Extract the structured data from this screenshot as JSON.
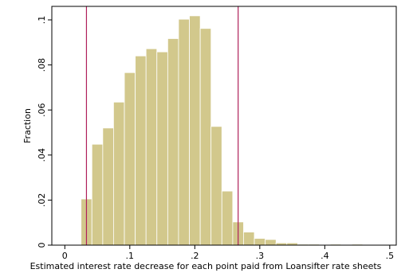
{
  "chart_data": {
    "type": "bar",
    "subtype": "histogram",
    "xlabel": "Estimated interest rate decrease for each point paid from Loansifter rate sheets",
    "ylabel": "Fraction",
    "xlim": [
      -0.02,
      0.51
    ],
    "ylim": [
      0,
      0.106
    ],
    "x_ticks": [
      0,
      0.1,
      0.2,
      0.3,
      0.4,
      0.5
    ],
    "x_tick_labels": [
      "0",
      ".1",
      ".2",
      ".3",
      ".4",
      ".5"
    ],
    "y_ticks": [
      0,
      0.02,
      0.04,
      0.06,
      0.08,
      0.1
    ],
    "y_tick_labels": [
      "0",
      ".02",
      ".04",
      ".06",
      ".08",
      ".1"
    ],
    "bin_width": 0.01667,
    "bins": [
      {
        "x": 0.0333,
        "value": 0.0205
      },
      {
        "x": 0.05,
        "value": 0.0448
      },
      {
        "x": 0.0667,
        "value": 0.052
      },
      {
        "x": 0.0833,
        "value": 0.0635
      },
      {
        "x": 0.1,
        "value": 0.0766
      },
      {
        "x": 0.1167,
        "value": 0.084
      },
      {
        "x": 0.1333,
        "value": 0.0872
      },
      {
        "x": 0.15,
        "value": 0.0858
      },
      {
        "x": 0.1667,
        "value": 0.0917
      },
      {
        "x": 0.1833,
        "value": 0.1003
      },
      {
        "x": 0.2,
        "value": 0.1018
      },
      {
        "x": 0.2167,
        "value": 0.0962
      },
      {
        "x": 0.2333,
        "value": 0.0527
      },
      {
        "x": 0.25,
        "value": 0.024
      },
      {
        "x": 0.2667,
        "value": 0.0103
      },
      {
        "x": 0.2833,
        "value": 0.0058
      },
      {
        "x": 0.3,
        "value": 0.003
      },
      {
        "x": 0.3167,
        "value": 0.0025
      },
      {
        "x": 0.3333,
        "value": 0.001
      },
      {
        "x": 0.35,
        "value": 0.001
      },
      {
        "x": 0.3667,
        "value": 0.0004
      },
      {
        "x": 0.3833,
        "value": 0.0004
      },
      {
        "x": 0.4,
        "value": 0.0002
      },
      {
        "x": 0.4167,
        "value": 0.0004
      },
      {
        "x": 0.4333,
        "value": 0.0002
      },
      {
        "x": 0.45,
        "value": 0.0004
      },
      {
        "x": 0.4667,
        "value": 0.0002
      },
      {
        "x": 0.4833,
        "value": 0.0002
      },
      {
        "x": 0.5,
        "value": 0.0002
      }
    ],
    "reference_lines_x": [
      0.0333,
      0.2667
    ],
    "colors": {
      "bar_fill": "#d2c88c",
      "bar_edge": "#ffffff",
      "reference_line": "#b0205a",
      "axis": "#000000"
    }
  }
}
